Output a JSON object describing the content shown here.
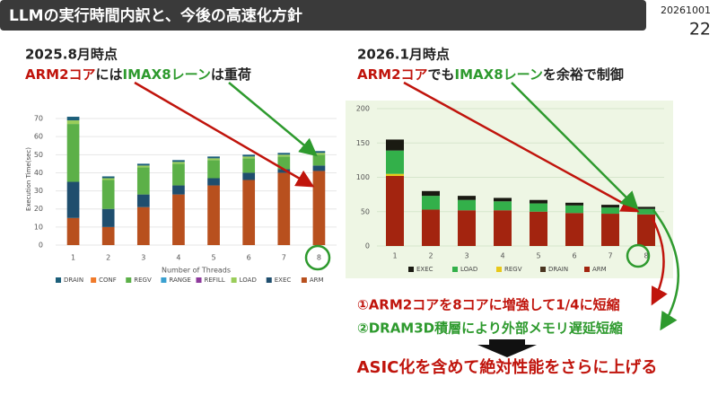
{
  "header": {
    "title": "LLMの実行時間内訳と、今後の高速化方針",
    "date": "20261001",
    "page": "22"
  },
  "left_note": {
    "heading": "2025.8月時点",
    "line": [
      "ARM2コア",
      "には",
      "IMAX8レーン",
      "は重荷"
    ]
  },
  "right_note": {
    "heading": "2026.1月時点",
    "line": [
      "ARM2コア",
      "でも",
      "IMAX8レーン",
      "を余裕で制御"
    ]
  },
  "conclusions": {
    "item1": "①ARM2コアを8コアに増強して1/4に短縮",
    "item2": "②DRAM3D積層により外部メモリ遅延短縮",
    "summary": "ASIC化を含めて絶対性能をさらに上げる"
  },
  "chart_data": [
    {
      "type": "stacked_bar",
      "y_label": "Execution Time(sec)",
      "x_label": "Number of Threads",
      "categories": [
        "1",
        "2",
        "3",
        "4",
        "5",
        "6",
        "7",
        "8"
      ],
      "ylim": [
        0,
        73
      ],
      "yticks": [
        0,
        10,
        20,
        30,
        40,
        50,
        60,
        70
      ],
      "grid": true,
      "series": [
        {
          "name": "ARM",
          "color": "#b8501e",
          "values": [
            15,
            10,
            21,
            28,
            33,
            36,
            40,
            41
          ]
        },
        {
          "name": "EXEC",
          "color": "#1f4e6e",
          "values": [
            20,
            10,
            7,
            5,
            4,
            4,
            2,
            3
          ]
        },
        {
          "name": "REGV",
          "color": "#5cb048",
          "values": [
            32,
            16,
            15,
            12,
            10,
            8,
            7,
            6
          ]
        },
        {
          "name": "LOAD",
          "color": "#9acd5a",
          "values": [
            2,
            1,
            1,
            1,
            1,
            1,
            1,
            1
          ]
        },
        {
          "name": "REFILL",
          "color": "#8e3a9c",
          "values": [
            0,
            0,
            0,
            0,
            0,
            0,
            0,
            0
          ]
        },
        {
          "name": "RANGE",
          "color": "#3aa0d0",
          "values": [
            0,
            0,
            0,
            0,
            0,
            0,
            0,
            0
          ]
        },
        {
          "name": "CONF",
          "color": "#f07a2a",
          "values": [
            0,
            0,
            0,
            0,
            0,
            0,
            0,
            0
          ]
        },
        {
          "name": "DRAIN",
          "color": "#1c5f7a",
          "values": [
            2,
            1,
            1,
            1,
            1,
            1,
            1,
            1
          ]
        }
      ],
      "legend_order": [
        "DRAIN",
        "CONF",
        "REGV",
        "RANGE",
        "REFILL",
        "LOAD",
        "EXEC",
        "ARM"
      ]
    },
    {
      "type": "stacked_bar",
      "categories": [
        "1",
        "2",
        "3",
        "4",
        "5",
        "6",
        "7",
        "8"
      ],
      "ylim": [
        0,
        200
      ],
      "yticks": [
        0,
        50,
        100,
        150,
        200
      ],
      "grid": true,
      "series": [
        {
          "name": "ARM",
          "color": "#a3240f",
          "values": [
            102,
            53,
            52,
            52,
            50,
            48,
            47,
            46
          ]
        },
        {
          "name": "DRAIN",
          "color": "#4a3520",
          "values": [
            0,
            0,
            0,
            0,
            0,
            0,
            0,
            0
          ]
        },
        {
          "name": "REGV",
          "color": "#e8c81a",
          "values": [
            3,
            0,
            0,
            0,
            0,
            0,
            0,
            0
          ]
        },
        {
          "name": "LOAD",
          "color": "#33b04a",
          "values": [
            34,
            20,
            15,
            13,
            12,
            11,
            9,
            8
          ]
        },
        {
          "name": "EXEC",
          "color": "#1a1a12",
          "values": [
            16,
            7,
            6,
            5,
            5,
            4,
            4,
            3
          ]
        }
      ],
      "legend_order": [
        "EXEC",
        "LOAD",
        "REGV",
        "DRAIN",
        "ARM"
      ]
    }
  ]
}
